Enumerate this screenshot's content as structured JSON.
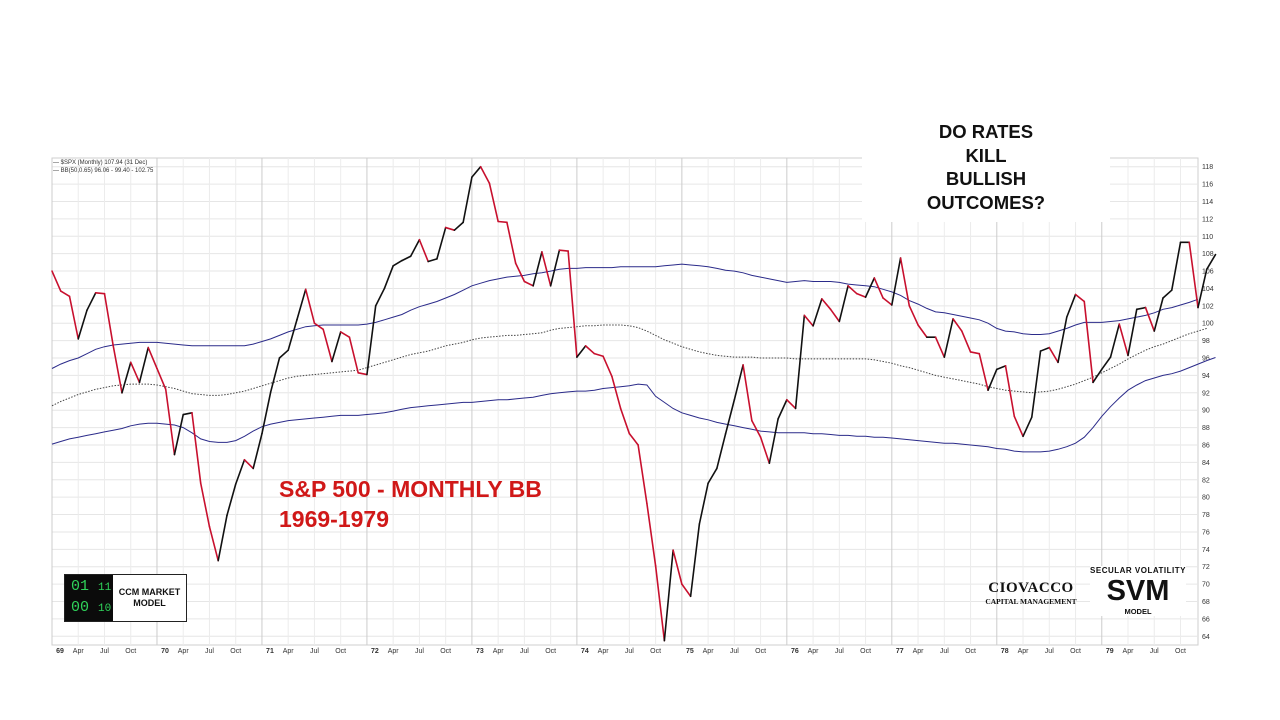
{
  "headline": {
    "lines": [
      "DO RATES",
      "KILL",
      "BULLISH",
      "OUTCOMES?"
    ]
  },
  "overlay": {
    "title_line1": "S&P 500 - MONTHLY BB",
    "title_line2": "1969-1979"
  },
  "legend": {
    "line1": "— $SPX (Monthly) 107.94 (31 Dec)",
    "line2": "— BB(50,0.65) 96.06 - 99.40 - 102.75"
  },
  "ccm_logo": {
    "digits_row1": "01",
    "digits_row1_small": "11",
    "digits_row2": "00",
    "digits_row2_small": "10",
    "text_line1": "CCM MARKET",
    "text_line2": "MODEL"
  },
  "ciovacco_logo": {
    "name": "CIOVACCO",
    "sub": "CAPITAL MANAGEMENT"
  },
  "svm_logo": {
    "top": "SECULAR  VOLATILITY",
    "main": "SVM",
    "bottom": "MODEL"
  },
  "chart_data": {
    "type": "line",
    "ylim": [
      63,
      119
    ],
    "y_ticks": [
      64,
      66,
      68,
      70,
      72,
      74,
      76,
      78,
      80,
      82,
      84,
      86,
      88,
      90,
      92,
      94,
      96,
      98,
      100,
      102,
      104,
      106,
      108,
      110,
      112,
      114,
      116,
      118
    ],
    "x_range": [
      0,
      131
    ],
    "x_ticks": [
      {
        "pos": 0,
        "label": "69"
      },
      {
        "pos": 3,
        "label": "Apr"
      },
      {
        "pos": 6,
        "label": "Jul"
      },
      {
        "pos": 9,
        "label": "Oct"
      },
      {
        "pos": 12,
        "label": "70"
      },
      {
        "pos": 15,
        "label": "Apr"
      },
      {
        "pos": 18,
        "label": "Jul"
      },
      {
        "pos": 21,
        "label": "Oct"
      },
      {
        "pos": 24,
        "label": "71"
      },
      {
        "pos": 27,
        "label": "Apr"
      },
      {
        "pos": 30,
        "label": "Jul"
      },
      {
        "pos": 33,
        "label": "Oct"
      },
      {
        "pos": 36,
        "label": "72"
      },
      {
        "pos": 39,
        "label": "Apr"
      },
      {
        "pos": 42,
        "label": "Jul"
      },
      {
        "pos": 45,
        "label": "Oct"
      },
      {
        "pos": 48,
        "label": "73"
      },
      {
        "pos": 51,
        "label": "Apr"
      },
      {
        "pos": 54,
        "label": "Jul"
      },
      {
        "pos": 57,
        "label": "Oct"
      },
      {
        "pos": 60,
        "label": "74"
      },
      {
        "pos": 63,
        "label": "Apr"
      },
      {
        "pos": 66,
        "label": "Jul"
      },
      {
        "pos": 69,
        "label": "Oct"
      },
      {
        "pos": 72,
        "label": "75"
      },
      {
        "pos": 75,
        "label": "Apr"
      },
      {
        "pos": 78,
        "label": "Jul"
      },
      {
        "pos": 81,
        "label": "Oct"
      },
      {
        "pos": 84,
        "label": "76"
      },
      {
        "pos": 87,
        "label": "Apr"
      },
      {
        "pos": 90,
        "label": "Jul"
      },
      {
        "pos": 93,
        "label": "Oct"
      },
      {
        "pos": 96,
        "label": "77"
      },
      {
        "pos": 99,
        "label": "Apr"
      },
      {
        "pos": 102,
        "label": "Jul"
      },
      {
        "pos": 105,
        "label": "Oct"
      },
      {
        "pos": 108,
        "label": "78"
      },
      {
        "pos": 111,
        "label": "Apr"
      },
      {
        "pos": 114,
        "label": "Jul"
      },
      {
        "pos": 117,
        "label": "Oct"
      },
      {
        "pos": 120,
        "label": "79"
      },
      {
        "pos": 123,
        "label": "Apr"
      },
      {
        "pos": 126,
        "label": "Jul"
      },
      {
        "pos": 129,
        "label": "Oct"
      }
    ],
    "grid": true,
    "series": [
      {
        "name": "$SPX (Monthly)",
        "colors": {
          "up": "#111111",
          "down": "#c8102e"
        },
        "values": [
          106.0,
          103.7,
          103.1,
          98.2,
          101.5,
          103.5,
          103.4,
          97.4,
          92.0,
          95.5,
          93.2,
          97.2,
          94.8,
          92.4,
          84.9,
          89.5,
          89.7,
          81.6,
          76.6,
          72.7,
          77.9,
          81.5,
          84.3,
          83.3,
          87.3,
          92.1,
          96.0,
          96.9,
          100.4,
          103.9,
          100.0,
          99.3,
          95.6,
          99.0,
          98.4,
          94.3,
          94.1,
          102.0,
          104.0,
          106.6,
          107.2,
          107.7,
          109.6,
          107.1,
          107.4,
          111.0,
          110.7,
          111.6,
          116.8,
          118.0,
          116.1,
          111.7,
          111.6,
          106.9,
          104.8,
          104.3,
          108.2,
          104.3,
          108.4,
          108.3,
          96.1,
          97.4,
          96.5,
          96.2,
          93.9,
          90.2,
          87.3,
          86.0,
          79.3,
          72.1,
          63.5,
          73.9,
          70.0,
          68.6,
          76.9,
          81.6,
          83.3,
          87.3,
          91.2,
          95.2,
          88.8,
          86.9,
          83.9,
          89.0,
          91.2,
          90.2,
          100.9,
          99.7,
          102.8,
          101.6,
          100.2,
          104.3,
          103.4,
          103.0,
          105.2,
          102.9,
          102.1,
          107.5,
          102.0,
          99.8,
          98.4,
          98.4,
          96.1,
          100.5,
          99.1,
          96.7,
          96.5,
          92.3,
          94.7,
          95.1,
          89.3,
          87.0,
          89.2,
          96.8,
          97.2,
          95.5,
          100.7,
          103.3,
          102.5,
          93.2,
          94.7,
          96.1,
          99.9,
          96.3,
          101.6,
          101.8,
          99.1,
          102.9,
          103.8,
          109.3,
          109.3,
          101.8,
          106.2,
          107.9
        ]
      },
      {
        "name": "BB upper",
        "color": "#2b2b8a",
        "values": [
          94.8,
          95.3,
          95.7,
          96.0,
          96.5,
          97.0,
          97.3,
          97.5,
          97.6,
          97.7,
          97.8,
          97.8,
          97.8,
          97.7,
          97.6,
          97.5,
          97.4,
          97.4,
          97.4,
          97.4,
          97.4,
          97.4,
          97.4,
          97.6,
          97.9,
          98.2,
          98.6,
          99.0,
          99.3,
          99.6,
          99.7,
          99.8,
          99.8,
          99.8,
          99.8,
          99.8,
          99.9,
          100.1,
          100.4,
          100.7,
          101.0,
          101.5,
          101.9,
          102.2,
          102.5,
          102.9,
          103.3,
          103.8,
          104.3,
          104.6,
          104.9,
          105.1,
          105.3,
          105.4,
          105.5,
          105.7,
          105.8,
          106.0,
          106.2,
          106.3,
          106.3,
          106.4,
          106.4,
          106.4,
          106.4,
          106.5,
          106.5,
          106.5,
          106.5,
          106.5,
          106.6,
          106.7,
          106.8,
          106.7,
          106.6,
          106.5,
          106.3,
          106.1,
          106.0,
          105.8,
          105.5,
          105.3,
          105.1,
          104.9,
          104.7,
          104.8,
          104.9,
          104.8,
          104.8,
          104.8,
          104.7,
          104.5,
          104.4,
          104.3,
          104.2,
          103.9,
          103.6,
          103.2,
          102.6,
          102.2,
          101.7,
          101.3,
          101.2,
          101.0,
          100.8,
          100.6,
          100.4,
          100.0,
          99.4,
          99.1,
          99.0,
          98.8,
          98.7,
          98.7,
          98.8,
          99.1,
          99.4,
          99.8,
          100.1,
          100.1,
          100.1,
          100.2,
          100.3,
          100.5,
          100.7,
          100.9,
          101.2,
          101.6,
          101.8,
          102.1,
          102.4,
          102.75
        ]
      },
      {
        "name": "BB middle",
        "color": "#444444",
        "dashed": true,
        "values": [
          90.5,
          91.0,
          91.4,
          91.8,
          92.1,
          92.4,
          92.6,
          92.8,
          92.9,
          93.0,
          93.0,
          93.0,
          92.9,
          92.7,
          92.5,
          92.2,
          91.9,
          91.8,
          91.7,
          91.7,
          91.8,
          92.0,
          92.2,
          92.5,
          92.8,
          93.1,
          93.4,
          93.7,
          93.9,
          94.0,
          94.1,
          94.2,
          94.3,
          94.4,
          94.5,
          94.6,
          94.9,
          95.2,
          95.5,
          95.8,
          96.1,
          96.4,
          96.6,
          96.8,
          97.1,
          97.4,
          97.6,
          97.8,
          98.1,
          98.3,
          98.4,
          98.5,
          98.6,
          98.6,
          98.7,
          98.8,
          98.9,
          99.2,
          99.4,
          99.5,
          99.6,
          99.7,
          99.7,
          99.8,
          99.8,
          99.8,
          99.7,
          99.5,
          99.1,
          98.6,
          98.1,
          97.7,
          97.3,
          97.0,
          96.7,
          96.5,
          96.3,
          96.2,
          96.1,
          96.1,
          96.1,
          96.0,
          96.0,
          96.0,
          96.0,
          95.9,
          95.9,
          95.9,
          95.9,
          95.9,
          95.9,
          95.9,
          95.9,
          95.9,
          95.8,
          95.6,
          95.4,
          95.1,
          94.9,
          94.6,
          94.3,
          94.0,
          93.8,
          93.6,
          93.4,
          93.2,
          93.0,
          92.7,
          92.5,
          92.3,
          92.2,
          92.1,
          92.0,
          92.1,
          92.2,
          92.4,
          92.7,
          93.0,
          93.4,
          93.8,
          94.3,
          94.8,
          95.3,
          95.9,
          96.4,
          96.9,
          97.3,
          97.6,
          98.0,
          98.4,
          98.8,
          99.1,
          99.4
        ]
      },
      {
        "name": "BB lower",
        "color": "#2b2b8a",
        "values": [
          86.1,
          86.4,
          86.7,
          86.9,
          87.1,
          87.3,
          87.5,
          87.7,
          87.9,
          88.2,
          88.4,
          88.5,
          88.5,
          88.4,
          88.3,
          88.0,
          87.4,
          86.7,
          86.4,
          86.3,
          86.3,
          86.5,
          87.0,
          87.6,
          88.1,
          88.4,
          88.6,
          88.8,
          88.9,
          89.0,
          89.1,
          89.2,
          89.3,
          89.4,
          89.4,
          89.4,
          89.5,
          89.6,
          89.7,
          89.9,
          90.1,
          90.3,
          90.4,
          90.5,
          90.6,
          90.7,
          90.8,
          90.9,
          90.9,
          91.0,
          91.1,
          91.2,
          91.2,
          91.3,
          91.4,
          91.5,
          91.7,
          91.9,
          92.0,
          92.1,
          92.2,
          92.2,
          92.3,
          92.5,
          92.6,
          92.7,
          92.8,
          93.0,
          92.9,
          91.6,
          90.9,
          90.2,
          89.7,
          89.4,
          89.1,
          88.9,
          88.6,
          88.4,
          88.2,
          88.0,
          87.8,
          87.6,
          87.5,
          87.4,
          87.4,
          87.4,
          87.4,
          87.3,
          87.3,
          87.2,
          87.1,
          87.1,
          87.0,
          87.0,
          86.9,
          86.9,
          86.8,
          86.7,
          86.6,
          86.5,
          86.4,
          86.3,
          86.2,
          86.2,
          86.1,
          86.0,
          85.9,
          85.8,
          85.6,
          85.5,
          85.3,
          85.2,
          85.2,
          85.2,
          85.3,
          85.5,
          85.8,
          86.2,
          86.9,
          88.0,
          89.3,
          90.4,
          91.4,
          92.3,
          92.9,
          93.4,
          93.7,
          94.0,
          94.2,
          94.5,
          94.9,
          95.3,
          95.7,
          96.06
        ]
      }
    ]
  }
}
